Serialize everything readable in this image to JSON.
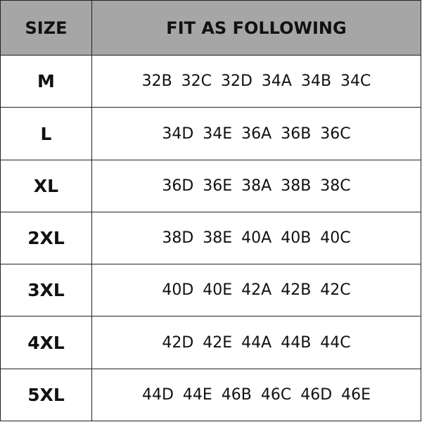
{
  "header": {
    "size": "SIZE",
    "fit": "FIT AS FOLLOWING"
  },
  "rows": [
    {
      "size": "M",
      "fit": "32B  32C  32D  34A  34B  34C"
    },
    {
      "size": "L",
      "fit": "34D  34E  36A  36B  36C"
    },
    {
      "size": "XL",
      "fit": "36D  36E  38A  38B  38C"
    },
    {
      "size": "2XL",
      "fit": "38D  38E  40A  40B  40C"
    },
    {
      "size": "3XL",
      "fit": "40D  40E  42A  42B  42C"
    },
    {
      "size": "4XL",
      "fit": "42D  42E  44A  44B  44C"
    },
    {
      "size": "5XL",
      "fit": "44D  44E  46B  46C  46D  46E"
    }
  ],
  "colors": {
    "header_bg": "#a6a6a6",
    "border": "#222222"
  }
}
